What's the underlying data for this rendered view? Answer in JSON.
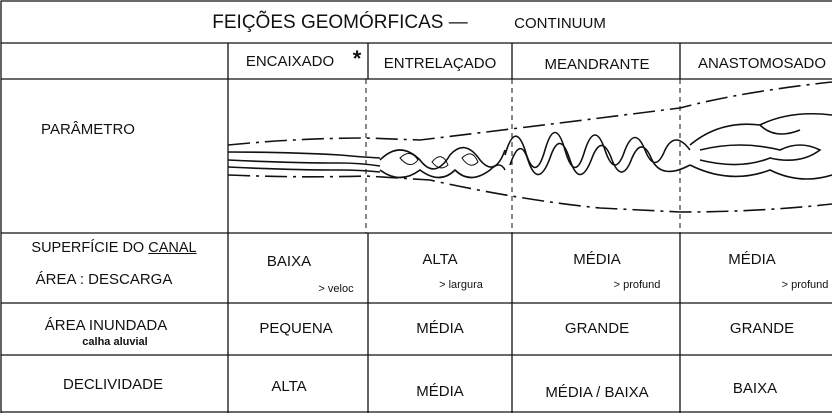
{
  "title": {
    "main": "FEIÇÕES GEOMÓRFICAS —",
    "sub": "CONTINUUM"
  },
  "header": {
    "encaixado": "ENCAIXADO",
    "mark": "*",
    "columns": [
      "ENTRELAÇADO",
      "MEANDRANTE",
      "ANASTOMOSADO"
    ]
  },
  "parameter": "PARÂMETRO",
  "surface_row": {
    "label": "SUPERFÍCIE DO",
    "label_underlined": "CANAL",
    "label2": "ÁREA : DESCARGA",
    "cells": [
      {
        "value": "BAIXA",
        "note": "> veloc"
      },
      {
        "value": "ALTA",
        "note": "> largura"
      },
      {
        "value": "MÉDIA",
        "note": "> profund"
      },
      {
        "value": "MÉDIA",
        "note": "> profund"
      }
    ]
  },
  "flood_row": {
    "label": "ÁREA INUNDADA",
    "sublabel": "calha aluvial",
    "cells": [
      "PEQUENA",
      "MÉDIA",
      "GRANDE",
      "GRANDE"
    ]
  },
  "slope_row": {
    "label": "DECLIVIDADE",
    "cells": [
      "ALTA",
      "MÉDIA",
      "MÉDIA / BAIXA",
      "BAIXA"
    ]
  }
}
